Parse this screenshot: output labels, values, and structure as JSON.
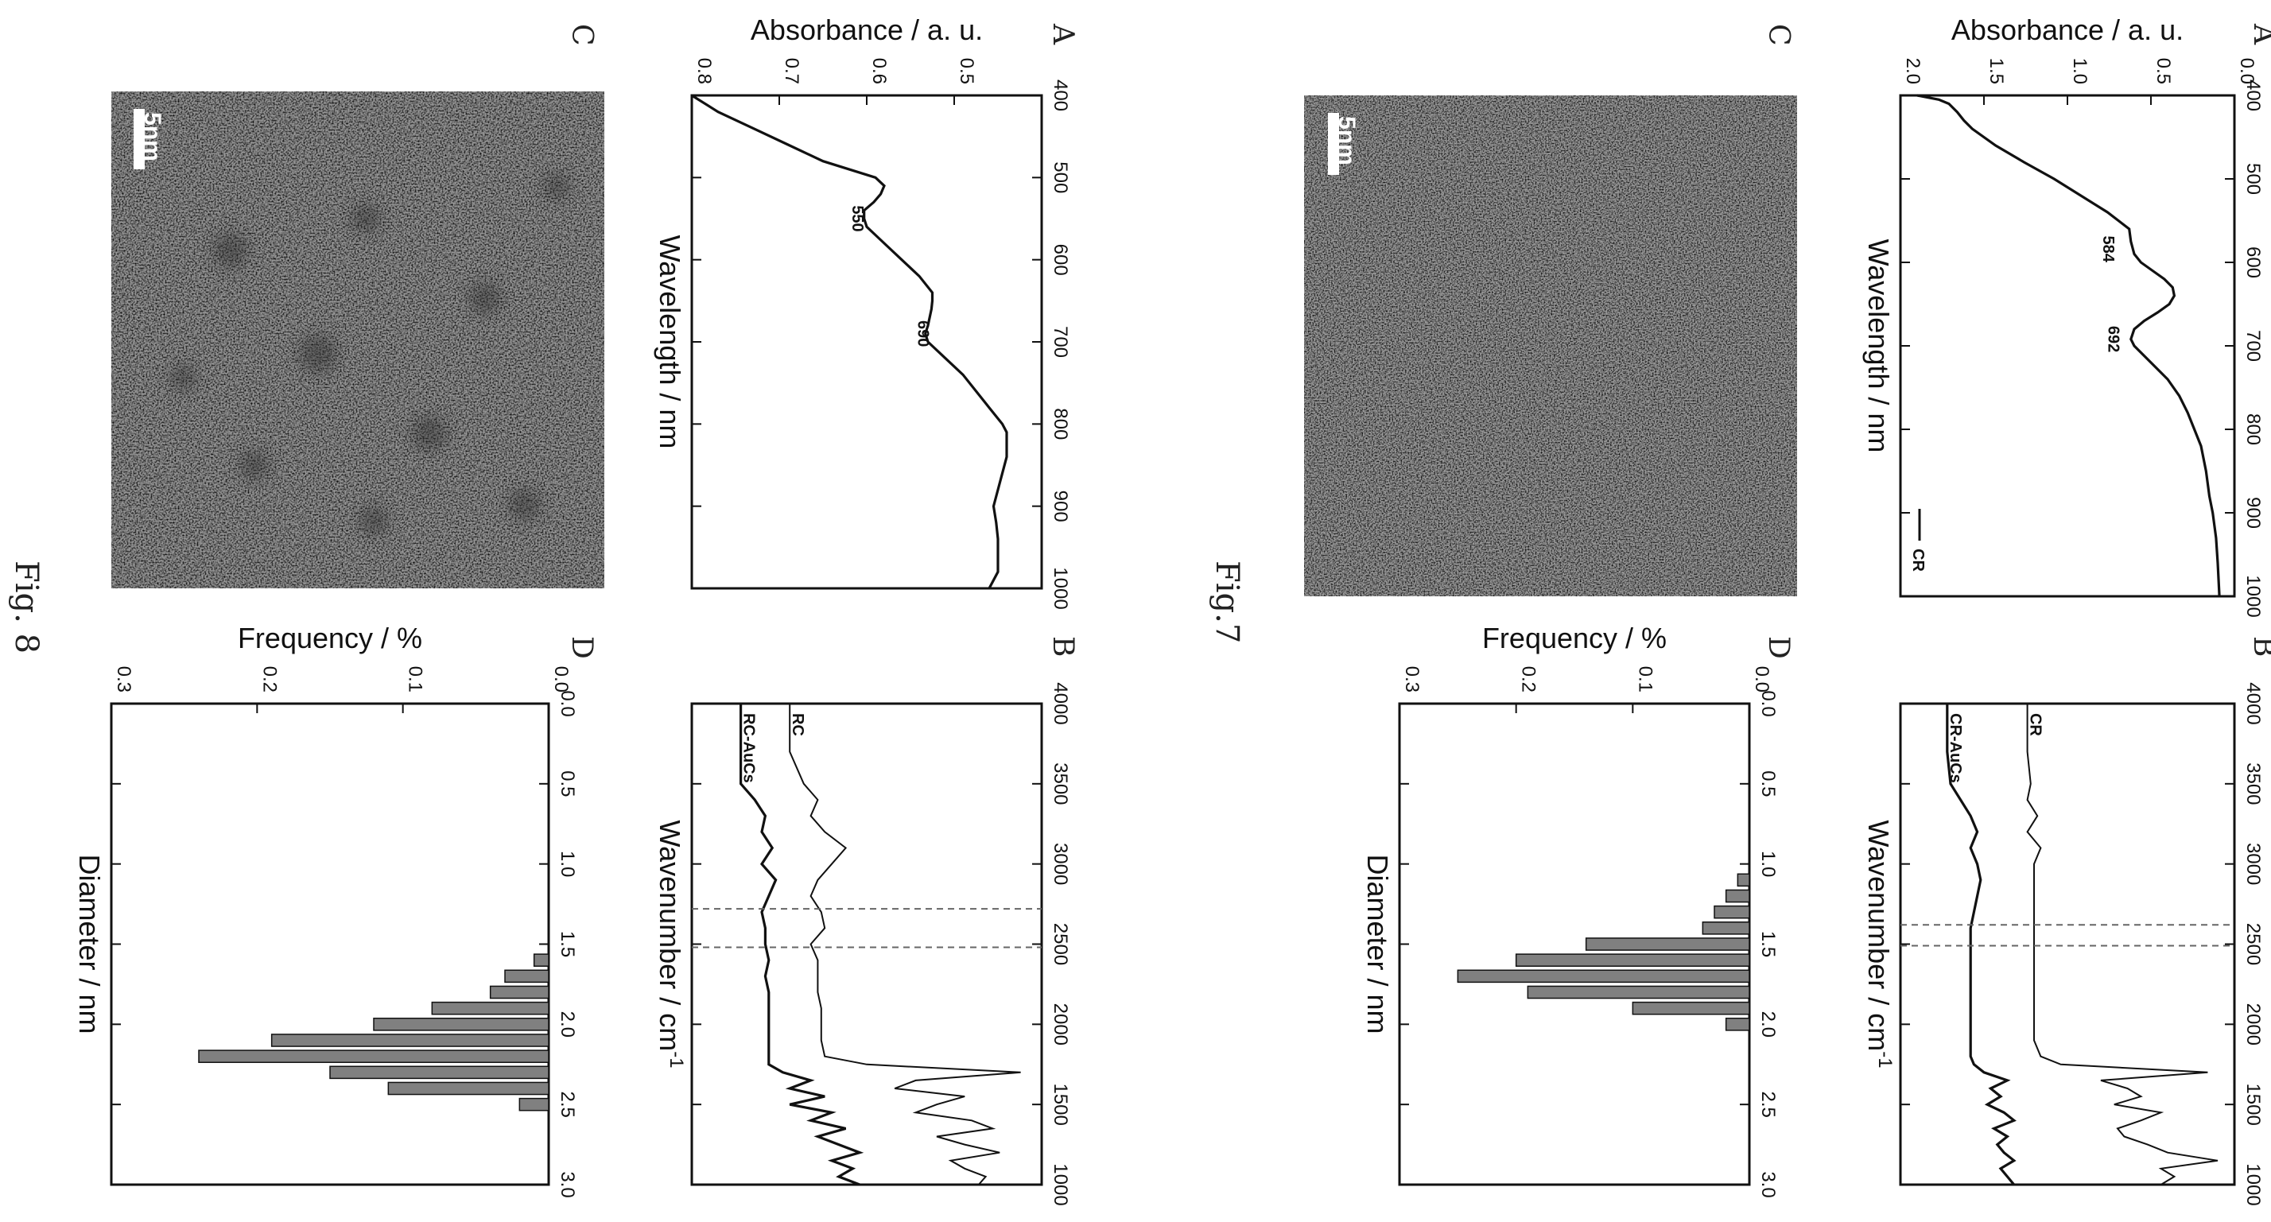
{
  "figures": [
    {
      "caption": "Fig.7"
    },
    {
      "caption": "Fig. 8"
    }
  ],
  "colors": {
    "line": "#111111",
    "bar": "#808080",
    "dash": "#666666",
    "tem_bg": "#6b6b6b"
  },
  "chart_data": [
    {
      "figure": "Fig.7",
      "panel": "A",
      "type": "line",
      "xlabel": "Wavelength / nm",
      "ylabel": "Absorbance / a. u.",
      "xlim": [
        400,
        1000
      ],
      "ylim": [
        0.0,
        2.0
      ],
      "xticks": [
        400,
        500,
        600,
        700,
        800,
        900,
        1000
      ],
      "yticks": [
        0.0,
        0.5,
        1.0,
        1.5,
        2.0
      ],
      "tick_labels_x": [
        "400",
        "500",
        "600",
        "700",
        "800",
        "900",
        "1000"
      ],
      "tick_labels_y": [
        "0.0",
        "0.5",
        "1.0",
        "1.5",
        "2.0"
      ],
      "legend": [
        "CR"
      ],
      "annotations": [
        {
          "text": "584",
          "x": 584,
          "y": 0.7
        },
        {
          "text": "692",
          "x": 692,
          "y": 0.67
        }
      ],
      "series": [
        {
          "name": "CR",
          "x": [
            400,
            405,
            410,
            420,
            430,
            440,
            460,
            480,
            500,
            520,
            540,
            560,
            575,
            590,
            600,
            610,
            620,
            630,
            640,
            650,
            660,
            670,
            680,
            692,
            700,
            720,
            740,
            760,
            780,
            800,
            820,
            850,
            880,
            900,
            930,
            960,
            1000
          ],
          "y": [
            1.9,
            1.77,
            1.71,
            1.66,
            1.62,
            1.57,
            1.43,
            1.26,
            1.08,
            0.92,
            0.76,
            0.63,
            0.62,
            0.6,
            0.56,
            0.49,
            0.42,
            0.37,
            0.36,
            0.39,
            0.46,
            0.54,
            0.6,
            0.62,
            0.6,
            0.5,
            0.4,
            0.33,
            0.28,
            0.24,
            0.2,
            0.17,
            0.15,
            0.13,
            0.11,
            0.1,
            0.09
          ]
        }
      ]
    },
    {
      "figure": "Fig.7",
      "panel": "B",
      "type": "line",
      "xlabel": "Wavenumber / cm",
      "xlabel_sup": "-1",
      "ylabel": "",
      "xlim": [
        4000,
        1000
      ],
      "xticks": [
        4000,
        3500,
        3000,
        2500,
        2000,
        1500,
        1000
      ],
      "tick_labels_x": [
        "4000",
        "3500",
        "3000",
        "2500",
        "2000",
        "1500",
        "1000"
      ],
      "dashed_lines_x": [
        2620,
        2490
      ],
      "series": [
        {
          "name": "CR-AuCs",
          "x": [
            4000,
            3700,
            3500,
            3400,
            3300,
            3200,
            3100,
            3000,
            2900,
            2800,
            2700,
            2600,
            2500,
            2400,
            2300,
            2200,
            2100,
            2000,
            1900,
            1800,
            1750,
            1700,
            1650,
            1600,
            1550,
            1500,
            1450,
            1400,
            1350,
            1300,
            1250,
            1200,
            1150,
            1100,
            1050,
            1000
          ],
          "y": [
            0.86,
            0.86,
            0.85,
            0.82,
            0.79,
            0.77,
            0.79,
            0.77,
            0.76,
            0.77,
            0.78,
            0.79,
            0.79,
            0.79,
            0.79,
            0.79,
            0.79,
            0.79,
            0.79,
            0.79,
            0.78,
            0.75,
            0.68,
            0.73,
            0.7,
            0.74,
            0.69,
            0.66,
            0.72,
            0.68,
            0.71,
            0.69,
            0.66,
            0.7,
            0.68,
            0.66
          ]
        },
        {
          "name": "CR",
          "x": [
            4000,
            3700,
            3500,
            3400,
            3300,
            3200,
            3100,
            3000,
            2900,
            2800,
            2700,
            2600,
            2500,
            2400,
            2300,
            2200,
            2100,
            2000,
            1900,
            1800,
            1750,
            1700,
            1650,
            1600,
            1550,
            1500,
            1450,
            1400,
            1350,
            1300,
            1250,
            1200,
            1150,
            1100,
            1050,
            1000
          ],
          "y": [
            0.62,
            0.62,
            0.61,
            0.62,
            0.59,
            0.62,
            0.58,
            0.6,
            0.6,
            0.6,
            0.6,
            0.6,
            0.6,
            0.6,
            0.6,
            0.6,
            0.6,
            0.6,
            0.6,
            0.58,
            0.52,
            0.08,
            0.4,
            0.32,
            0.28,
            0.36,
            0.22,
            0.28,
            0.35,
            0.33,
            0.26,
            0.2,
            0.05,
            0.22,
            0.18,
            0.22
          ]
        }
      ]
    },
    {
      "figure": "Fig.7",
      "panel": "D",
      "type": "bar",
      "xlabel": "Diameter / nm",
      "ylabel": "Frequency / %",
      "xlim": [
        0.0,
        3.0
      ],
      "ylim": [
        0.0,
        0.3
      ],
      "xticks": [
        0.0,
        0.5,
        1.0,
        1.5,
        2.0,
        2.5,
        3.0
      ],
      "yticks": [
        0.0,
        0.1,
        0.2,
        0.3
      ],
      "tick_labels_x": [
        "0.0",
        "0.5",
        "1.0",
        "1.5",
        "2.0",
        "2.5",
        "3.0"
      ],
      "tick_labels_y": [
        "0.0",
        "0.1",
        "0.2",
        "0.3"
      ],
      "bin_width": 0.075,
      "x": [
        1.1,
        1.2,
        1.3,
        1.4,
        1.5,
        1.6,
        1.7,
        1.8,
        1.9,
        2.0
      ],
      "values": [
        0.01,
        0.02,
        0.03,
        0.04,
        0.14,
        0.2,
        0.25,
        0.19,
        0.1,
        0.02
      ]
    },
    {
      "figure": "Fig. 8",
      "panel": "A",
      "type": "line",
      "xlabel": "Wavelength / nm",
      "ylabel": "Absorbance / a. u.",
      "xlim": [
        400,
        1000
      ],
      "ylim": [
        0.4,
        0.8
      ],
      "xticks": [
        400,
        500,
        600,
        700,
        800,
        900,
        1000
      ],
      "yticks": [
        0.5,
        0.6,
        0.7,
        0.8
      ],
      "tick_labels_x": [
        "400",
        "500",
        "600",
        "700",
        "800",
        "900",
        "1000"
      ],
      "tick_labels_y": [
        "0.5",
        "0.6",
        "0.7",
        "0.8"
      ],
      "annotations": [
        {
          "text": "550",
          "x": 550,
          "y": 0.6
        },
        {
          "text": "690",
          "x": 690,
          "y": 0.525
        }
      ],
      "series": [
        {
          "name": "",
          "x": [
            400,
            420,
            440,
            460,
            480,
            500,
            510,
            520,
            530,
            540,
            550,
            560,
            580,
            600,
            620,
            640,
            650,
            660,
            680,
            690,
            700,
            720,
            740,
            760,
            780,
            800,
            810,
            820,
            840,
            860,
            880,
            900,
            920,
            940,
            960,
            980,
            1000
          ],
          "y": [
            0.8,
            0.77,
            0.73,
            0.69,
            0.65,
            0.59,
            0.58,
            0.584,
            0.592,
            0.603,
            0.603,
            0.6,
            0.58,
            0.56,
            0.54,
            0.525,
            0.525,
            0.526,
            0.53,
            0.533,
            0.53,
            0.51,
            0.49,
            0.475,
            0.46,
            0.445,
            0.44,
            0.44,
            0.44,
            0.445,
            0.45,
            0.455,
            0.452,
            0.45,
            0.45,
            0.45,
            0.46
          ]
        }
      ]
    },
    {
      "figure": "Fig. 8",
      "panel": "B",
      "type": "line",
      "xlabel": "Wavenumber / cm",
      "xlabel_sup": "-1",
      "ylabel": "",
      "xlim": [
        4000,
        1000
      ],
      "xticks": [
        4000,
        3500,
        3000,
        2500,
        2000,
        1500,
        1000
      ],
      "tick_labels_x": [
        "4000",
        "3500",
        "3000",
        "2500",
        "2000",
        "1500",
        "1000"
      ],
      "dashed_lines_x": [
        2720,
        2480
      ],
      "series": [
        {
          "name": "RC-AuCs",
          "x": [
            4000,
            3700,
            3500,
            3400,
            3300,
            3200,
            3100,
            3000,
            2900,
            2800,
            2700,
            2600,
            2500,
            2400,
            2300,
            2200,
            2100,
            2000,
            1900,
            1800,
            1750,
            1700,
            1650,
            1600,
            1550,
            1500,
            1450,
            1400,
            1350,
            1300,
            1250,
            1200,
            1150,
            1100,
            1050,
            1000
          ],
          "y": [
            0.86,
            0.86,
            0.86,
            0.82,
            0.79,
            0.8,
            0.77,
            0.8,
            0.76,
            0.78,
            0.8,
            0.79,
            0.79,
            0.78,
            0.79,
            0.78,
            0.78,
            0.78,
            0.78,
            0.78,
            0.78,
            0.74,
            0.66,
            0.72,
            0.62,
            0.72,
            0.6,
            0.66,
            0.56,
            0.64,
            0.58,
            0.52,
            0.6,
            0.54,
            0.58,
            0.52
          ]
        },
        {
          "name": "RC",
          "x": [
            4000,
            3700,
            3500,
            3400,
            3300,
            3200,
            3100,
            3000,
            2900,
            2800,
            2700,
            2600,
            2500,
            2400,
            2300,
            2200,
            2100,
            2000,
            1900,
            1800,
            1750,
            1700,
            1650,
            1600,
            1550,
            1500,
            1450,
            1400,
            1350,
            1300,
            1250,
            1200,
            1150,
            1100,
            1050,
            1000
          ],
          "y": [
            0.72,
            0.72,
            0.68,
            0.64,
            0.66,
            0.62,
            0.56,
            0.6,
            0.64,
            0.66,
            0.63,
            0.62,
            0.66,
            0.64,
            0.64,
            0.64,
            0.63,
            0.63,
            0.63,
            0.62,
            0.5,
            0.06,
            0.36,
            0.42,
            0.22,
            0.3,
            0.36,
            0.2,
            0.14,
            0.3,
            0.22,
            0.12,
            0.26,
            0.22,
            0.16,
            0.18
          ]
        }
      ]
    },
    {
      "figure": "Fig. 8",
      "panel": "D",
      "type": "bar",
      "xlabel": "Diameter / nm",
      "ylabel": "Frequency / %",
      "xlim": [
        0.0,
        3.0
      ],
      "ylim": [
        0.0,
        0.3
      ],
      "xticks": [
        0.0,
        0.5,
        1.0,
        1.5,
        2.0,
        2.5,
        3.0
      ],
      "yticks": [
        0.0,
        0.1,
        0.2,
        0.3
      ],
      "tick_labels_x": [
        "0.0",
        "0.5",
        "1.0",
        "1.5",
        "2.0",
        "2.5",
        "3.0"
      ],
      "tick_labels_y": [
        "0.0",
        "0.1",
        "0.2",
        "0.3"
      ],
      "bin_width": 0.075,
      "x": [
        1.6,
        1.7,
        1.8,
        1.9,
        2.0,
        2.1,
        2.2,
        2.3,
        2.4,
        2.5
      ],
      "values": [
        0.01,
        0.03,
        0.04,
        0.08,
        0.12,
        0.19,
        0.24,
        0.15,
        0.11,
        0.02
      ]
    }
  ],
  "tem_images": [
    {
      "figure": "Fig.7",
      "panel": "C",
      "scale_label": "5nm"
    },
    {
      "figure": "Fig. 8",
      "panel": "C",
      "scale_label": "5nm"
    }
  ]
}
